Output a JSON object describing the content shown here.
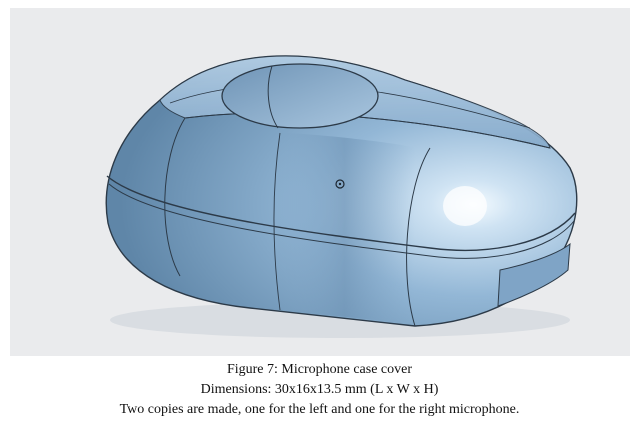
{
  "figure": {
    "image_description_name": "microphone-case-cover-render",
    "colors": {
      "panel_background": "#eaebed",
      "body_fill": "#8fb3d4",
      "edge_lines": "#2c3a48"
    }
  },
  "caption": {
    "line1": "Figure 7: Microphone case cover",
    "line2": "Dimensions: 30x16x13.5 mm (L x W x H)",
    "line3": "Two copies are made, one for the left and one for the right microphone."
  }
}
